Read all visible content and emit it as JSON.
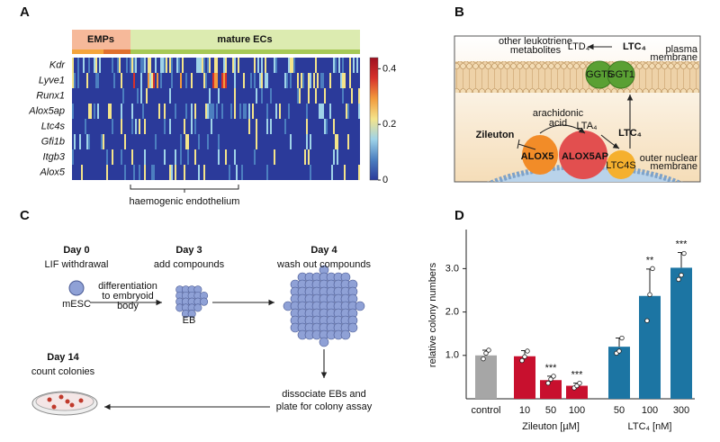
{
  "panels": {
    "a": {
      "label": "A",
      "groups": [
        "EMPs",
        "mature ECs"
      ],
      "genes": [
        "Kdr",
        "Lyve1",
        "Runx1",
        "Alox5ap",
        "Ltc4s",
        "Gfi1b",
        "Itgb3",
        "Alox5"
      ],
      "colorbar_ticks": [
        0,
        0.2,
        0.4
      ],
      "bracket_label": "haemogenic endothelium"
    },
    "b": {
      "label": "B",
      "metabolites": [
        "other leukotriene",
        "metabolites"
      ],
      "ltd4": "LTD₄",
      "ltc4_top": "LTC₄",
      "plasma_membrane": [
        "plasma",
        "membrane"
      ],
      "ggt5": "GGT5",
      "ggt1": "GGT1",
      "arachidonic_acid": [
        "arachidonic",
        "acid"
      ],
      "lta4": "LTA₄",
      "ltc4": "LTC₄",
      "zileuton": "Zileuton",
      "alox5": "ALOX5",
      "alox5ap": "ALOX5AP",
      "ltc4s": "LTC4S",
      "nuclear_membrane": [
        "outer nuclear",
        "membrane"
      ]
    },
    "c": {
      "label": "C",
      "steps": [
        {
          "day": "Day 0",
          "action": "LIF withdrawal"
        },
        {
          "day": "Day 3",
          "action": "add compounds"
        },
        {
          "day": "Day 4",
          "action": "wash out compounds"
        },
        {
          "day": "Day 14",
          "action": "count colonies"
        }
      ],
      "mesc": "mESC",
      "differentiation": [
        "differentiation",
        "to embryoid",
        "body"
      ],
      "eb": "EB",
      "dissociate": [
        "dissociate EBs and",
        "plate for colony assay"
      ]
    },
    "d": {
      "label": "D"
    }
  },
  "chart_data": {
    "type": "bar",
    "y_label": "relative colony numbers",
    "categories": [
      "control",
      "10",
      "50",
      "100",
      "50",
      "100",
      "300"
    ],
    "values": [
      1.0,
      0.98,
      0.43,
      0.3,
      1.2,
      2.37,
      3.02
    ],
    "errors": [
      0.12,
      0.13,
      0.09,
      0.06,
      0.2,
      0.62,
      0.35
    ],
    "points": [
      [
        0.92,
        1.05,
        1.12
      ],
      [
        0.88,
        0.97,
        1.1
      ],
      [
        0.36,
        0.45,
        0.52
      ],
      [
        0.25,
        0.3,
        0.36
      ],
      [
        1.05,
        1.1,
        1.4
      ],
      [
        1.8,
        2.4,
        3.0
      ],
      [
        2.75,
        2.85,
        3.35
      ]
    ],
    "colors": [
      "#a6a6a6",
      "#c8102e",
      "#c8102e",
      "#c8102e",
      "#1c75a3",
      "#1c75a3",
      "#1c75a3"
    ],
    "significance": [
      null,
      null,
      "***",
      "***",
      null,
      "**",
      "***"
    ],
    "group_labels": [
      "Zileuton [µM]",
      "LTC₄ [nM]"
    ],
    "ylim": [
      0,
      3.9
    ],
    "yticks": [
      {
        "value": 1,
        "label": "1.0"
      },
      {
        "value": 2,
        "label": "2.0"
      },
      {
        "value": 3,
        "label": "3.0"
      }
    ]
  }
}
